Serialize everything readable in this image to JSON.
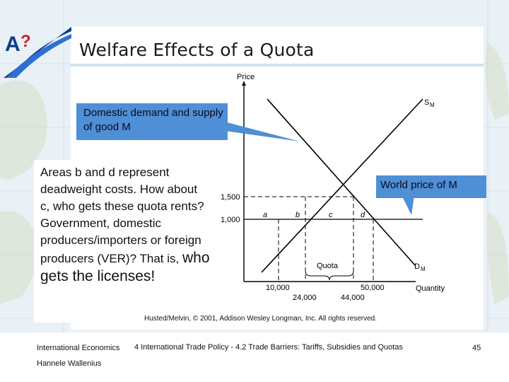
{
  "slide": {
    "title": "Welfare Effects of a Quota",
    "callout_demand": "Domestic demand and supply of good M",
    "callout_world": "World price of M",
    "areas_text_main": "Areas b and d represent deadweight costs. How about c, who gets these quota rents? Government, domestic producers/importers or foreign producers (VER)?",
    "areas_text_small": "That is,",
    "areas_text_large": "who gets the licenses!",
    "credit": "Husted/Melvin, © 2001, Addison Wesley Longman, Inc. All rights reserved."
  },
  "footer": {
    "course": "International Economics",
    "author": "Hannele Wallenius",
    "topic": "4 International Trade Policy - 4.2 Trade Barriers: Tariffs, Subsidies and Quotas",
    "page": "45"
  },
  "chart_data": {
    "type": "line",
    "ylabel": "Price",
    "xlabel": "Quantity",
    "price_ticks": [
      "1,500",
      "1,000"
    ],
    "price_values": [
      1500,
      1000
    ],
    "quantity_ticks": [
      "10,000",
      "24,000",
      "44,000",
      "50,000"
    ],
    "quantity_values": [
      10000,
      24000,
      44000,
      50000
    ],
    "series": [
      {
        "name": "SM",
        "points": [
          [
            0,
            500
          ],
          [
            60000,
            2000
          ]
        ]
      },
      {
        "name": "DM",
        "points": [
          [
            0,
            2000
          ],
          [
            60000,
            500
          ]
        ]
      }
    ],
    "area_labels": [
      "a",
      "b",
      "c",
      "d"
    ],
    "quota_label": "Quota",
    "supply_label": "S",
    "supply_sub": "M",
    "demand_label": "D",
    "demand_sub": "M"
  },
  "colors": {
    "callout": "#4f8fd6",
    "accent": "#0a3d8f",
    "logo_red": "#d21f26"
  }
}
